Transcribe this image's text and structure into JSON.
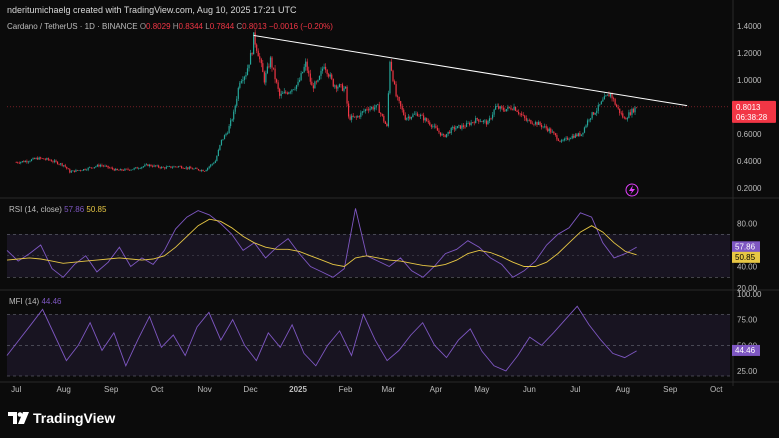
{
  "header": {
    "created_by": "nderitumichaelg created with TradingView.com, Aug 10, 2025 17:21 UTC"
  },
  "legend": {
    "symbol": "Cardano / TetherUS · 1D · BINANCE",
    "o_label": "O",
    "o": "0.8029",
    "h_label": "H",
    "h": "0.8344",
    "l_label": "L",
    "l": "0.7844",
    "c_label": "C",
    "c": "0.8013",
    "change": "−0.0016 (−0.20%)"
  },
  "rsi_legend": {
    "name": "RSI (14, close)",
    "value": "57.86",
    "ma": "50.85"
  },
  "mfi_legend": {
    "name": "MFI (14)",
    "value": "44.46"
  },
  "price_badge": {
    "price": "0.8013",
    "countdown": "06:38:28"
  },
  "brand": {
    "name": "TradingView"
  },
  "colors": {
    "up": "#26a69a",
    "down": "#f23645",
    "rsi": "#7e57c2",
    "rsi_ma": "#e7c744",
    "mfi": "#7e57c2",
    "trendline": "#ffffff",
    "badge": "#f23645"
  },
  "icons": {
    "lightning": "lightning-icon",
    "logo": "tradingview-logo-icon"
  },
  "chart_data": [
    {
      "type": "candlestick",
      "title": "",
      "ylim": [
        0.2,
        1.4
      ],
      "y_ticks": [
        "1.4000",
        "1.2000",
        "1.0000",
        "0.8000",
        "0.6000",
        "0.4000",
        "0.2000"
      ],
      "x_ticks": [
        "Jul",
        "Aug",
        "Sep",
        "Oct",
        "Nov",
        "Dec",
        "2025",
        "Feb",
        "Mar",
        "Apr",
        "May",
        "Jun",
        "Jul",
        "Aug",
        "Sep",
        "Oct"
      ],
      "x_range": [
        "2024-06-25",
        "2025-10-10"
      ],
      "close_series": [
        [
          "2024-07-01",
          0.39
        ],
        [
          "2024-07-08",
          0.4
        ],
        [
          "2024-07-15",
          0.42
        ],
        [
          "2024-07-22",
          0.41
        ],
        [
          "2024-08-01",
          0.37
        ],
        [
          "2024-08-05",
          0.32
        ],
        [
          "2024-08-15",
          0.34
        ],
        [
          "2024-08-25",
          0.37
        ],
        [
          "2024-09-05",
          0.33
        ],
        [
          "2024-09-15",
          0.34
        ],
        [
          "2024-09-25",
          0.37
        ],
        [
          "2024-10-05",
          0.35
        ],
        [
          "2024-10-15",
          0.36
        ],
        [
          "2024-10-25",
          0.34
        ],
        [
          "2024-11-01",
          0.33
        ],
        [
          "2024-11-08",
          0.4
        ],
        [
          "2024-11-12",
          0.55
        ],
        [
          "2024-11-16",
          0.62
        ],
        [
          "2024-11-20",
          0.75
        ],
        [
          "2024-11-24",
          1.0
        ],
        [
          "2024-11-28",
          1.05
        ],
        [
          "2024-12-02",
          1.22
        ],
        [
          "2024-12-03",
          1.32
        ],
        [
          "2024-12-06",
          1.2
        ],
        [
          "2024-12-10",
          1.0
        ],
        [
          "2024-12-14",
          1.15
        ],
        [
          "2024-12-20",
          0.88
        ],
        [
          "2024-12-26",
          0.92
        ],
        [
          "2025-01-01",
          0.97
        ],
        [
          "2025-01-06",
          1.12
        ],
        [
          "2025-01-10",
          0.95
        ],
        [
          "2025-01-14",
          0.98
        ],
        [
          "2025-01-18",
          1.12
        ],
        [
          "2025-01-24",
          0.97
        ],
        [
          "2025-02-01",
          0.93
        ],
        [
          "2025-02-03",
          0.72
        ],
        [
          "2025-02-08",
          0.72
        ],
        [
          "2025-02-15",
          0.79
        ],
        [
          "2025-02-22",
          0.8
        ],
        [
          "2025-02-28",
          0.65
        ],
        [
          "2025-03-02",
          1.15
        ],
        [
          "2025-03-06",
          0.88
        ],
        [
          "2025-03-12",
          0.72
        ],
        [
          "2025-03-20",
          0.75
        ],
        [
          "2025-03-28",
          0.68
        ],
        [
          "2025-04-06",
          0.58
        ],
        [
          "2025-04-12",
          0.64
        ],
        [
          "2025-04-20",
          0.66
        ],
        [
          "2025-04-28",
          0.71
        ],
        [
          "2025-05-05",
          0.68
        ],
        [
          "2025-05-10",
          0.8
        ],
        [
          "2025-05-15",
          0.78
        ],
        [
          "2025-05-22",
          0.8
        ],
        [
          "2025-05-30",
          0.7
        ],
        [
          "2025-06-06",
          0.68
        ],
        [
          "2025-06-14",
          0.63
        ],
        [
          "2025-06-22",
          0.54
        ],
        [
          "2025-06-28",
          0.58
        ],
        [
          "2025-07-05",
          0.6
        ],
        [
          "2025-07-10",
          0.72
        ],
        [
          "2025-07-15",
          0.78
        ],
        [
          "2025-07-20",
          0.86
        ],
        [
          "2025-07-24",
          0.9
        ],
        [
          "2025-07-28",
          0.8
        ],
        [
          "2025-08-02",
          0.71
        ],
        [
          "2025-08-06",
          0.76
        ],
        [
          "2025-08-10",
          0.8
        ]
      ],
      "trendline": [
        [
          "2024-12-03",
          1.33
        ],
        [
          "2025-09-12",
          0.81
        ]
      ],
      "last_price": 0.8013
    },
    {
      "type": "line",
      "title": "",
      "ylim": [
        20,
        100
      ],
      "y_ticks": [
        "80.00",
        "60.00",
        "40.00",
        "20.00"
      ],
      "bands": [
        70,
        30
      ],
      "series": [
        {
          "name": "RSI (14, close)",
          "values": [
            55,
            45,
            52,
            60,
            38,
            30,
            42,
            50,
            35,
            44,
            58,
            40,
            48,
            42,
            55,
            75,
            86,
            92,
            88,
            80,
            70,
            55,
            62,
            48,
            58,
            66,
            52,
            40,
            35,
            30,
            38,
            94,
            50,
            45,
            40,
            48,
            36,
            30,
            40,
            52,
            56,
            64,
            58,
            48,
            42,
            30,
            36,
            45,
            60,
            70,
            76,
            90,
            86,
            62,
            48,
            52,
            58
          ]
        },
        {
          "name": "RSI MA",
          "values": [
            46,
            47,
            48,
            47,
            45,
            43,
            44,
            45,
            46,
            47,
            48,
            47,
            46,
            47,
            50,
            58,
            68,
            78,
            84,
            82,
            76,
            68,
            62,
            58,
            56,
            56,
            54,
            50,
            46,
            42,
            40,
            48,
            50,
            48,
            46,
            45,
            43,
            41,
            40,
            42,
            46,
            52,
            55,
            53,
            49,
            44,
            40,
            40,
            44,
            52,
            62,
            72,
            78,
            72,
            62,
            54,
            50.85
          ]
        }
      ],
      "last_values": {
        "rsi": 57.86,
        "ma": 50.85
      }
    },
    {
      "type": "line",
      "title": "",
      "ylim": [
        20,
        100
      ],
      "y_ticks": [
        "100.00",
        "75.00",
        "50.00",
        "25.00"
      ],
      "bands": [
        80,
        50,
        20
      ],
      "series": [
        {
          "name": "MFI (14)",
          "values": [
            40,
            55,
            70,
            85,
            60,
            35,
            50,
            72,
            45,
            62,
            30,
            55,
            78,
            48,
            60,
            40,
            68,
            82,
            55,
            75,
            50,
            35,
            62,
            48,
            70,
            42,
            30,
            50,
            64,
            40,
            80,
            55,
            35,
            45,
            60,
            72,
            50,
            38,
            55,
            66,
            44,
            30,
            25,
            40,
            58,
            50,
            62,
            75,
            88,
            70,
            55,
            42,
            38,
            44.46
          ]
        }
      ],
      "last_value": 44.46
    }
  ]
}
